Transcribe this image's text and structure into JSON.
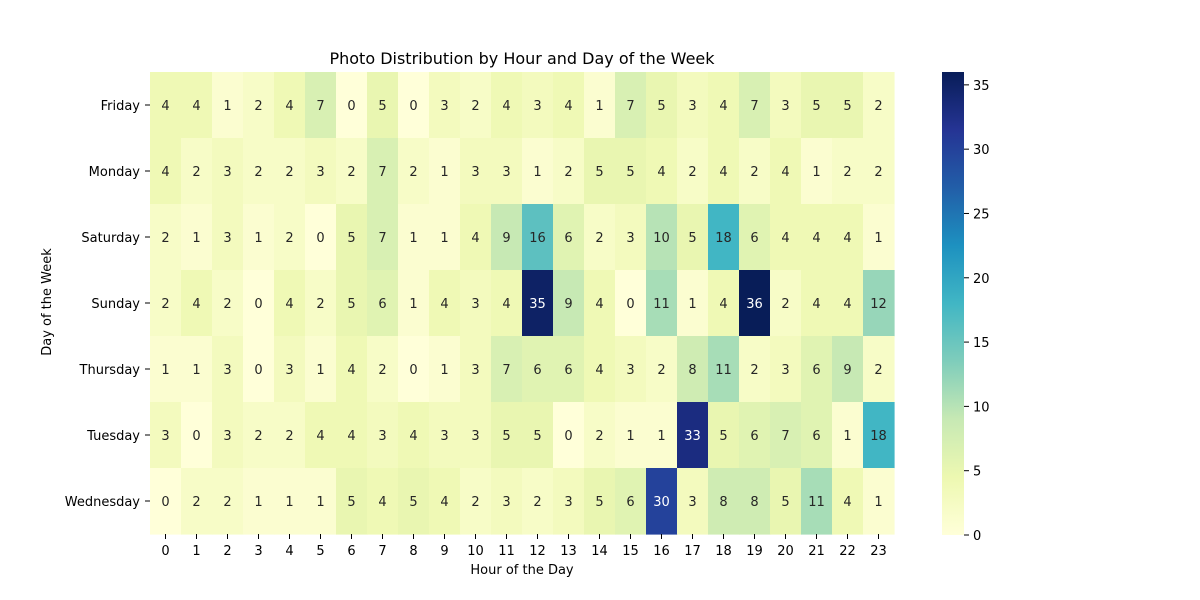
{
  "chart_data": {
    "type": "heatmap",
    "title": "Photo Distribution by Hour and Day of the Week",
    "xlabel": "Hour of the Day",
    "ylabel": "Day of the Week",
    "x_categories": [
      "0",
      "1",
      "2",
      "3",
      "4",
      "5",
      "6",
      "7",
      "8",
      "9",
      "10",
      "11",
      "12",
      "13",
      "14",
      "15",
      "16",
      "17",
      "18",
      "19",
      "20",
      "21",
      "22",
      "23"
    ],
    "y_categories": [
      "Friday",
      "Monday",
      "Saturday",
      "Sunday",
      "Thursday",
      "Tuesday",
      "Wednesday"
    ],
    "values": [
      [
        4,
        4,
        1,
        2,
        4,
        7,
        0,
        5,
        0,
        3,
        2,
        4,
        3,
        4,
        1,
        7,
        5,
        3,
        4,
        7,
        3,
        5,
        5,
        2
      ],
      [
        4,
        2,
        3,
        2,
        2,
        3,
        2,
        7,
        2,
        1,
        3,
        3,
        1,
        2,
        5,
        5,
        4,
        2,
        4,
        2,
        4,
        1,
        2,
        2
      ],
      [
        2,
        1,
        3,
        1,
        2,
        0,
        5,
        7,
        1,
        1,
        4,
        9,
        16,
        6,
        2,
        3,
        10,
        5,
        18,
        6,
        4,
        4,
        4,
        1
      ],
      [
        2,
        4,
        2,
        0,
        4,
        2,
        5,
        6,
        1,
        4,
        3,
        4,
        35,
        9,
        4,
        0,
        11,
        1,
        4,
        36,
        2,
        4,
        4,
        12
      ],
      [
        1,
        1,
        3,
        0,
        3,
        1,
        4,
        2,
        0,
        1,
        3,
        7,
        6,
        6,
        4,
        3,
        2,
        8,
        11,
        2,
        3,
        6,
        9,
        2
      ],
      [
        3,
        0,
        3,
        2,
        2,
        4,
        4,
        3,
        4,
        3,
        3,
        5,
        5,
        0,
        2,
        1,
        1,
        33,
        5,
        6,
        7,
        6,
        1,
        18
      ],
      [
        0,
        2,
        2,
        1,
        1,
        1,
        5,
        4,
        5,
        4,
        2,
        3,
        2,
        3,
        5,
        6,
        30,
        3,
        8,
        8,
        5,
        11,
        4,
        1
      ]
    ],
    "colormap": "YlGnBu",
    "vmin": 0,
    "vmax": 36,
    "annotated": true,
    "colorbar": {
      "ticks": [
        "0",
        "5",
        "10",
        "15",
        "20",
        "25",
        "30",
        "35"
      ],
      "tick_values": [
        0,
        5,
        10,
        15,
        20,
        25,
        30,
        35
      ]
    }
  }
}
